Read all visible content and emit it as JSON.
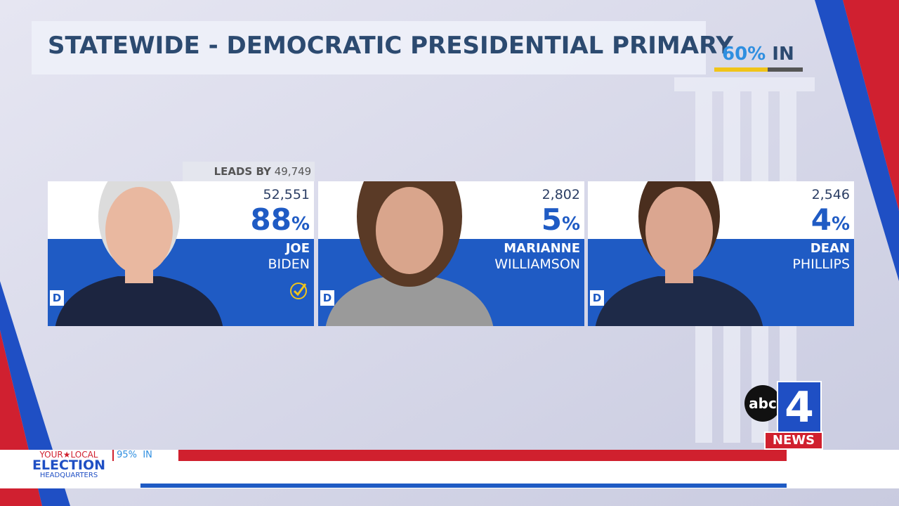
{
  "header": {
    "title": "STATEWIDE - DEMOCRATIC PRESIDENTIAL PRIMARY",
    "reporting": "60%",
    "reporting_suffix": "IN"
  },
  "leader_note": {
    "label": "LEADS BY",
    "margin": "49,749"
  },
  "candidates": [
    {
      "votes": "52,551",
      "percent": "88",
      "percent_sign": "%",
      "first_name": "JOE",
      "last_name": "BIDEN",
      "party": "D",
      "winner": true
    },
    {
      "votes": "2,802",
      "percent": "5",
      "percent_sign": "%",
      "first_name": "MARIANNE",
      "last_name": "WILLIAMSON",
      "party": "D",
      "winner": false
    },
    {
      "votes": "2,546",
      "percent": "4",
      "percent_sign": "%",
      "first_name": "DEAN",
      "last_name": "PHILLIPS",
      "party": "D",
      "winner": false
    }
  ],
  "ticker": {
    "brand_top": "YOUR",
    "brand_star": "★",
    "brand_local": "LOCAL",
    "brand_main": "ELECTION",
    "brand_bottom": "HEADQUARTERS",
    "reporting": "95%",
    "reporting_suffix": "IN"
  },
  "logo": {
    "network": "abc",
    "channel": "4",
    "news": "NEWS"
  }
}
